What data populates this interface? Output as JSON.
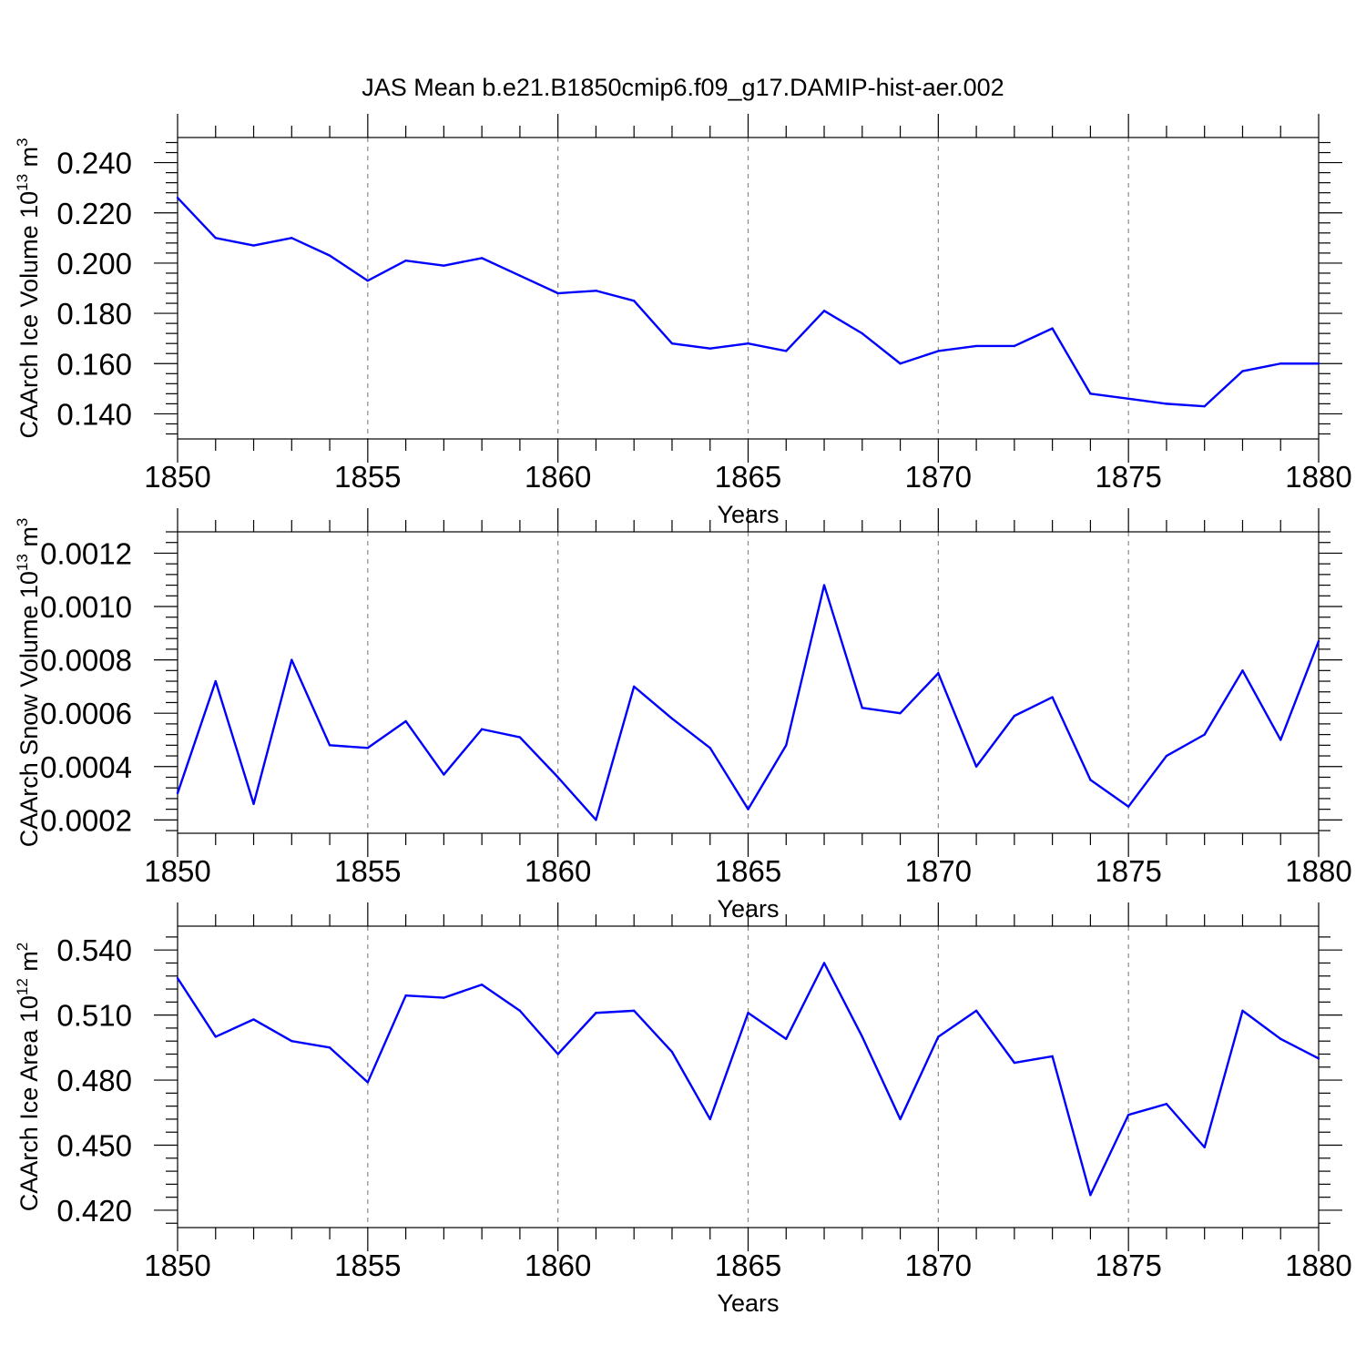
{
  "figure": {
    "title": "JAS Mean b.e21.B1850cmip6.f09_g17.DAMIP-hist-aer.002"
  },
  "chart_data": [
    {
      "type": "line",
      "title": "",
      "xlabel": "Years",
      "ylabel": "CAArch Ice Volume 10",
      "ylabel_exp": "13",
      "ylabel_unit": "m",
      "ylabel_unit_exp": "3",
      "xlim": [
        1850,
        1880
      ],
      "ylim": [
        0.13,
        0.25
      ],
      "xticks": [
        1850,
        1855,
        1860,
        1865,
        1870,
        1875,
        1880
      ],
      "yticks": [
        0.14,
        0.16,
        0.18,
        0.2,
        0.22,
        0.24
      ],
      "ytick_labels": [
        "0.140",
        "0.160",
        "0.180",
        "0.200",
        "0.220",
        "0.240"
      ],
      "grid": "vertical dashed at major x ticks",
      "color": "#0000ff",
      "x": [
        1850,
        1851,
        1852,
        1853,
        1854,
        1855,
        1856,
        1857,
        1858,
        1859,
        1860,
        1861,
        1862,
        1863,
        1864,
        1865,
        1866,
        1867,
        1868,
        1869,
        1870,
        1871,
        1872,
        1873,
        1874,
        1875,
        1876,
        1877,
        1878,
        1879,
        1880
      ],
      "y": [
        0.226,
        0.21,
        0.207,
        0.21,
        0.203,
        0.193,
        0.201,
        0.199,
        0.202,
        0.195,
        0.188,
        0.189,
        0.185,
        0.168,
        0.166,
        0.168,
        0.165,
        0.181,
        0.172,
        0.16,
        0.165,
        0.167,
        0.167,
        0.174,
        0.148,
        0.146,
        0.144,
        0.143,
        0.157,
        0.16,
        0.16
      ]
    },
    {
      "type": "line",
      "title": "",
      "xlabel": "Years",
      "ylabel": "CAArch Snow Volume 10",
      "ylabel_exp": "13",
      "ylabel_unit": "m",
      "ylabel_unit_exp": "3",
      "xlim": [
        1850,
        1880
      ],
      "ylim": [
        0.00015,
        0.00128
      ],
      "xticks": [
        1850,
        1855,
        1860,
        1865,
        1870,
        1875,
        1880
      ],
      "yticks": [
        0.0002,
        0.0004,
        0.0006,
        0.0008,
        0.001,
        0.0012
      ],
      "ytick_labels": [
        "0.0002",
        "0.0004",
        "0.0006",
        "0.0008",
        "0.0010",
        "0.0012"
      ],
      "grid": "vertical dashed at major x ticks",
      "color": "#0000ff",
      "x": [
        1850,
        1851,
        1852,
        1853,
        1854,
        1855,
        1856,
        1857,
        1858,
        1859,
        1860,
        1861,
        1862,
        1863,
        1864,
        1865,
        1866,
        1867,
        1868,
        1869,
        1870,
        1871,
        1872,
        1873,
        1874,
        1875,
        1876,
        1877,
        1878,
        1879,
        1880
      ],
      "y": [
        0.0003,
        0.00072,
        0.00026,
        0.0008,
        0.00048,
        0.00047,
        0.00057,
        0.00037,
        0.00054,
        0.00051,
        0.00036,
        0.0002,
        0.0007,
        0.00058,
        0.00047,
        0.00024,
        0.00048,
        0.00108,
        0.00062,
        0.0006,
        0.00075,
        0.0004,
        0.00059,
        0.00066,
        0.00035,
        0.00025,
        0.00044,
        0.00052,
        0.00076,
        0.0005,
        0.00087
      ]
    },
    {
      "type": "line",
      "title": "",
      "xlabel": "Years",
      "ylabel": "CAArch Ice Area 10",
      "ylabel_exp": "12",
      "ylabel_unit": "m",
      "ylabel_unit_exp": "2",
      "xlim": [
        1850,
        1880
      ],
      "ylim": [
        0.412,
        0.551
      ],
      "xticks": [
        1850,
        1855,
        1860,
        1865,
        1870,
        1875,
        1880
      ],
      "yticks": [
        0.42,
        0.45,
        0.48,
        0.51,
        0.54
      ],
      "ytick_labels": [
        "0.420",
        "0.450",
        "0.480",
        "0.510",
        "0.540"
      ],
      "grid": "vertical dashed at major x ticks",
      "color": "#0000ff",
      "x": [
        1850,
        1851,
        1852,
        1853,
        1854,
        1855,
        1856,
        1857,
        1858,
        1859,
        1860,
        1861,
        1862,
        1863,
        1864,
        1865,
        1866,
        1867,
        1868,
        1869,
        1870,
        1871,
        1872,
        1873,
        1874,
        1875,
        1876,
        1877,
        1878,
        1879,
        1880
      ],
      "y": [
        0.527,
        0.5,
        0.508,
        0.498,
        0.495,
        0.479,
        0.519,
        0.518,
        0.524,
        0.512,
        0.492,
        0.511,
        0.512,
        0.493,
        0.462,
        0.511,
        0.499,
        0.534,
        0.5,
        0.462,
        0.5,
        0.512,
        0.488,
        0.491,
        0.427,
        0.464,
        0.469,
        0.449,
        0.512,
        0.499,
        0.49
      ]
    }
  ]
}
